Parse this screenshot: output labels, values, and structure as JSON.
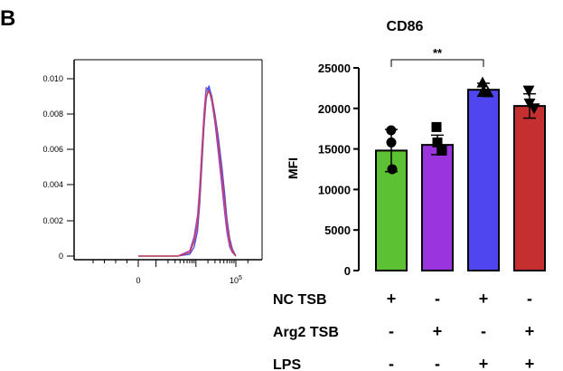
{
  "figure": {
    "panel_label": "B",
    "title": "CD86"
  },
  "histogram": {
    "y_ticks": [
      "0.010",
      "0.008",
      "0.006",
      "0.004",
      "0.002",
      "0"
    ],
    "x_ticks": [
      "0",
      "10"
    ],
    "x_tick_superscript": "5",
    "curve_colors": [
      "#5fb14a",
      "#9b3fe0",
      "#4b4ef0",
      "#d04040"
    ]
  },
  "conditions": {
    "rows": [
      {
        "label": "NC TSB",
        "values": [
          "+",
          "-",
          "+",
          "-"
        ]
      },
      {
        "label": "Arg2 TSB",
        "values": [
          "-",
          "+",
          "-",
          "+"
        ]
      },
      {
        "label": "LPS",
        "values": [
          "-",
          "-",
          "+",
          "+"
        ]
      }
    ]
  },
  "chart_data": [
    {
      "type": "line",
      "title": "",
      "xlabel": "",
      "ylabel": "",
      "x_scale": "log",
      "y_ticks": [
        0,
        0.002,
        0.004,
        0.006,
        0.008,
        0.01
      ],
      "ylim": [
        0,
        0.0105
      ],
      "series": [
        {
          "color": "#5fb14a",
          "x": [
            0,
            3500,
            7000,
            9000,
            11000,
            12500,
            14000,
            16000,
            18000,
            21000,
            25000,
            30000,
            36000,
            44000,
            52000,
            60000,
            70000,
            82000,
            100000
          ],
          "y": [
            0,
            0,
            0.0002,
            0.0009,
            0.002,
            0.0038,
            0.0058,
            0.0078,
            0.0093,
            0.0095,
            0.009,
            0.0078,
            0.0061,
            0.0042,
            0.0026,
            0.0014,
            0.0006,
            0.0002,
            0
          ]
        },
        {
          "color": "#9b3fe0",
          "x": [
            0,
            3500,
            7000,
            9000,
            11000,
            12500,
            14000,
            16000,
            18000,
            21000,
            25000,
            30000,
            36000,
            44000,
            52000,
            60000,
            70000,
            82000,
            100000
          ],
          "y": [
            0,
            0,
            0.0003,
            0.0011,
            0.0023,
            0.004,
            0.006,
            0.0081,
            0.0095,
            0.0094,
            0.0087,
            0.0075,
            0.0059,
            0.0041,
            0.0025,
            0.0013,
            0.0005,
            0.0002,
            0
          ]
        },
        {
          "color": "#4b4ef0",
          "x": [
            0,
            3500,
            7000,
            9000,
            11000,
            12500,
            14000,
            16000,
            18000,
            21000,
            25000,
            30000,
            36000,
            44000,
            52000,
            60000,
            70000,
            82000,
            100000
          ],
          "y": [
            0,
            0,
            0.0001,
            0.0005,
            0.0014,
            0.003,
            0.005,
            0.0073,
            0.0088,
            0.0096,
            0.009,
            0.008,
            0.0068,
            0.0052,
            0.0036,
            0.0021,
            0.001,
            0.0004,
            0
          ]
        },
        {
          "color": "#d04040",
          "x": [
            0,
            3500,
            7000,
            9000,
            11000,
            12500,
            14000,
            16000,
            18000,
            21000,
            25000,
            30000,
            36000,
            44000,
            52000,
            60000,
            70000,
            82000,
            100000
          ],
          "y": [
            0,
            0,
            0.0002,
            0.0008,
            0.0018,
            0.0034,
            0.0055,
            0.0076,
            0.009,
            0.0093,
            0.0089,
            0.0078,
            0.0064,
            0.0047,
            0.0031,
            0.0018,
            0.0008,
            0.0003,
            0
          ]
        }
      ]
    },
    {
      "type": "bar",
      "title": "CD86",
      "xlabel": "",
      "ylabel": "MFI",
      "ylim": [
        0,
        25000
      ],
      "y_ticks": [
        0,
        5000,
        10000,
        15000,
        20000,
        25000
      ],
      "grid": false,
      "categories": [
        "NC TSB",
        "Arg2 TSB",
        "NC TSB + LPS",
        "Arg2 TSB + LPS"
      ],
      "values": [
        14800,
        15500,
        22300,
        20300
      ],
      "errors": [
        2600,
        1200,
        800,
        1500
      ],
      "colors": [
        "#5cc133",
        "#9a34dc",
        "#5046f0",
        "#c62f2f"
      ],
      "markers": [
        "circle",
        "square",
        "triangle-up",
        "triangle-down"
      ],
      "points": [
        [
          17300,
          15800,
          12500
        ],
        [
          17700,
          15800,
          14800
        ],
        [
          23200,
          22200,
          22000
        ],
        [
          22200,
          20600,
          20000
        ]
      ],
      "annotations": [
        {
          "text": "**",
          "from_index": 0,
          "to_index": 2,
          "y": 26000
        }
      ]
    }
  ]
}
